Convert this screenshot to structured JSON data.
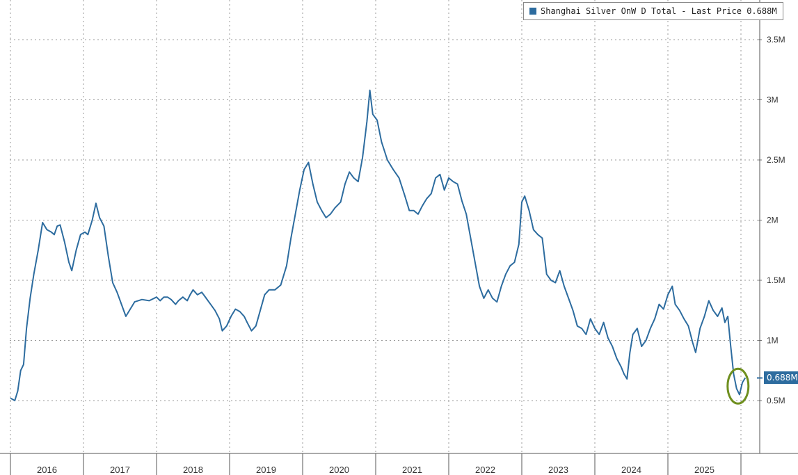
{
  "chart_data": {
    "type": "line",
    "title": "",
    "xlabel": "",
    "ylabel": "",
    "ylim": [
      0,
      3.9
    ],
    "y_unit": "M",
    "y_ticks": [
      {
        "value": 0.5,
        "label": "0.5M"
      },
      {
        "value": 1.0,
        "label": "1M"
      },
      {
        "value": 1.5,
        "label": "1.5M"
      },
      {
        "value": 2.0,
        "label": "2M"
      },
      {
        "value": 2.5,
        "label": "2.5M"
      },
      {
        "value": 3.0,
        "label": "3M"
      },
      {
        "value": 3.5,
        "label": "3.5M"
      }
    ],
    "x_tick_labels": [
      "2016",
      "2017",
      "2018",
      "2019",
      "2020",
      "2021",
      "2022",
      "2023",
      "2024",
      "2025"
    ],
    "x_range": [
      2015.5,
      2025.75
    ],
    "grid": true,
    "legend_position": "top-right",
    "series": [
      {
        "name": "Shanghai Silver OnW D Total",
        "legend_label": "Shanghai Silver OnW D Total - Last Price 0.688M",
        "color": "#2d6c9f",
        "last_value": 0.688,
        "last_label": "0.688M",
        "points": [
          [
            2015.5,
            0.52
          ],
          [
            2015.56,
            0.5
          ],
          [
            2015.6,
            0.58
          ],
          [
            2015.64,
            0.75
          ],
          [
            2015.68,
            0.8
          ],
          [
            2015.72,
            1.1
          ],
          [
            2015.77,
            1.35
          ],
          [
            2015.82,
            1.55
          ],
          [
            2015.88,
            1.75
          ],
          [
            2015.94,
            1.98
          ],
          [
            2016.0,
            1.92
          ],
          [
            2016.06,
            1.9
          ],
          [
            2016.1,
            1.88
          ],
          [
            2016.14,
            1.95
          ],
          [
            2016.18,
            1.96
          ],
          [
            2016.24,
            1.82
          ],
          [
            2016.3,
            1.65
          ],
          [
            2016.34,
            1.58
          ],
          [
            2016.4,
            1.75
          ],
          [
            2016.46,
            1.88
          ],
          [
            2016.52,
            1.9
          ],
          [
            2016.56,
            1.88
          ],
          [
            2016.62,
            2.0
          ],
          [
            2016.67,
            2.14
          ],
          [
            2016.72,
            2.02
          ],
          [
            2016.78,
            1.95
          ],
          [
            2016.84,
            1.7
          ],
          [
            2016.9,
            1.48
          ],
          [
            2016.96,
            1.4
          ],
          [
            2017.02,
            1.3
          ],
          [
            2017.08,
            1.2
          ],
          [
            2017.14,
            1.26
          ],
          [
            2017.2,
            1.32
          ],
          [
            2017.3,
            1.34
          ],
          [
            2017.4,
            1.33
          ],
          [
            2017.5,
            1.36
          ],
          [
            2017.55,
            1.33
          ],
          [
            2017.6,
            1.36
          ],
          [
            2017.65,
            1.36
          ],
          [
            2017.7,
            1.34
          ],
          [
            2017.76,
            1.3
          ],
          [
            2017.8,
            1.33
          ],
          [
            2017.86,
            1.36
          ],
          [
            2017.92,
            1.33
          ],
          [
            2017.96,
            1.38
          ],
          [
            2018.0,
            1.42
          ],
          [
            2018.06,
            1.38
          ],
          [
            2018.12,
            1.4
          ],
          [
            2018.18,
            1.35
          ],
          [
            2018.24,
            1.3
          ],
          [
            2018.3,
            1.25
          ],
          [
            2018.36,
            1.18
          ],
          [
            2018.4,
            1.08
          ],
          [
            2018.46,
            1.12
          ],
          [
            2018.52,
            1.2
          ],
          [
            2018.58,
            1.26
          ],
          [
            2018.64,
            1.24
          ],
          [
            2018.7,
            1.2
          ],
          [
            2018.74,
            1.15
          ],
          [
            2018.8,
            1.08
          ],
          [
            2018.86,
            1.12
          ],
          [
            2018.92,
            1.25
          ],
          [
            2018.98,
            1.38
          ],
          [
            2019.04,
            1.42
          ],
          [
            2019.12,
            1.42
          ],
          [
            2019.2,
            1.46
          ],
          [
            2019.28,
            1.62
          ],
          [
            2019.34,
            1.85
          ],
          [
            2019.4,
            2.05
          ],
          [
            2019.46,
            2.25
          ],
          [
            2019.52,
            2.42
          ],
          [
            2019.58,
            2.48
          ],
          [
            2019.64,
            2.3
          ],
          [
            2019.7,
            2.15
          ],
          [
            2019.76,
            2.08
          ],
          [
            2019.82,
            2.02
          ],
          [
            2019.88,
            2.05
          ],
          [
            2019.94,
            2.1
          ],
          [
            2020.02,
            2.15
          ],
          [
            2020.08,
            2.3
          ],
          [
            2020.14,
            2.4
          ],
          [
            2020.2,
            2.35
          ],
          [
            2020.26,
            2.32
          ],
          [
            2020.32,
            2.52
          ],
          [
            2020.38,
            2.82
          ],
          [
            2020.42,
            3.08
          ],
          [
            2020.46,
            2.88
          ],
          [
            2020.52,
            2.83
          ],
          [
            2020.58,
            2.65
          ],
          [
            2020.66,
            2.5
          ],
          [
            2020.74,
            2.42
          ],
          [
            2020.82,
            2.35
          ],
          [
            2020.9,
            2.2
          ],
          [
            2020.96,
            2.08
          ],
          [
            2021.02,
            2.08
          ],
          [
            2021.08,
            2.05
          ],
          [
            2021.14,
            2.12
          ],
          [
            2021.2,
            2.18
          ],
          [
            2021.26,
            2.22
          ],
          [
            2021.32,
            2.35
          ],
          [
            2021.38,
            2.38
          ],
          [
            2021.44,
            2.25
          ],
          [
            2021.5,
            2.35
          ],
          [
            2021.56,
            2.32
          ],
          [
            2021.62,
            2.3
          ],
          [
            2021.68,
            2.16
          ],
          [
            2021.74,
            2.05
          ],
          [
            2021.8,
            1.85
          ],
          [
            2021.86,
            1.65
          ],
          [
            2021.92,
            1.45
          ],
          [
            2021.98,
            1.35
          ],
          [
            2022.04,
            1.42
          ],
          [
            2022.1,
            1.35
          ],
          [
            2022.16,
            1.32
          ],
          [
            2022.22,
            1.45
          ],
          [
            2022.28,
            1.55
          ],
          [
            2022.34,
            1.62
          ],
          [
            2022.4,
            1.65
          ],
          [
            2022.46,
            1.8
          ],
          [
            2022.5,
            2.15
          ],
          [
            2022.54,
            2.2
          ],
          [
            2022.6,
            2.08
          ],
          [
            2022.66,
            1.92
          ],
          [
            2022.72,
            1.88
          ],
          [
            2022.78,
            1.85
          ],
          [
            2022.84,
            1.55
          ],
          [
            2022.9,
            1.5
          ],
          [
            2022.96,
            1.48
          ],
          [
            2023.02,
            1.58
          ],
          [
            2023.08,
            1.45
          ],
          [
            2023.14,
            1.35
          ],
          [
            2023.2,
            1.25
          ],
          [
            2023.26,
            1.12
          ],
          [
            2023.32,
            1.1
          ],
          [
            2023.38,
            1.05
          ],
          [
            2023.44,
            1.18
          ],
          [
            2023.5,
            1.1
          ],
          [
            2023.56,
            1.05
          ],
          [
            2023.62,
            1.15
          ],
          [
            2023.68,
            1.02
          ],
          [
            2023.74,
            0.95
          ],
          [
            2023.8,
            0.85
          ],
          [
            2023.86,
            0.78
          ],
          [
            2023.9,
            0.72
          ],
          [
            2023.94,
            0.68
          ],
          [
            2023.98,
            0.9
          ],
          [
            2024.02,
            1.05
          ],
          [
            2024.08,
            1.1
          ],
          [
            2024.14,
            0.95
          ],
          [
            2024.2,
            1.0
          ],
          [
            2024.26,
            1.1
          ],
          [
            2024.32,
            1.18
          ],
          [
            2024.38,
            1.3
          ],
          [
            2024.44,
            1.26
          ],
          [
            2024.5,
            1.38
          ],
          [
            2024.56,
            1.45
          ],
          [
            2024.6,
            1.3
          ],
          [
            2024.66,
            1.25
          ],
          [
            2024.72,
            1.18
          ],
          [
            2024.78,
            1.12
          ],
          [
            2024.84,
            0.98
          ],
          [
            2024.88,
            0.9
          ],
          [
            2024.94,
            1.1
          ],
          [
            2025.0,
            1.2
          ],
          [
            2025.06,
            1.33
          ],
          [
            2025.12,
            1.25
          ],
          [
            2025.18,
            1.2
          ],
          [
            2025.24,
            1.27
          ],
          [
            2025.28,
            1.15
          ],
          [
            2025.32,
            1.2
          ],
          [
            2025.36,
            0.95
          ],
          [
            2025.4,
            0.72
          ],
          [
            2025.44,
            0.6
          ],
          [
            2025.48,
            0.55
          ],
          [
            2025.52,
            0.65
          ],
          [
            2025.56,
            0.69
          ]
        ]
      }
    ]
  }
}
